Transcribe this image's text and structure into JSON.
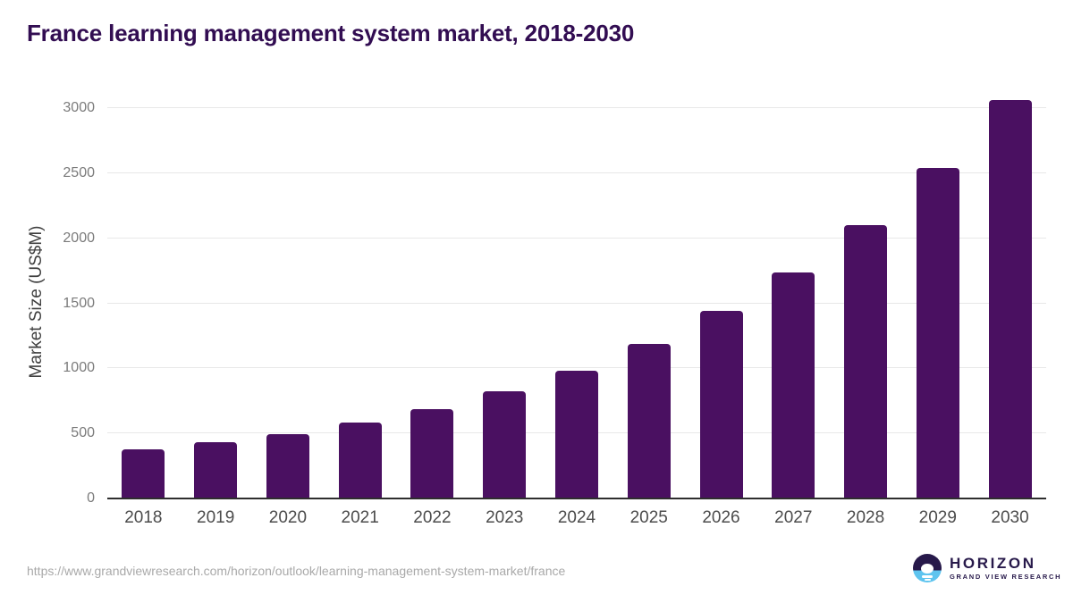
{
  "header": {
    "title": "France learning management system market, 2018-2030"
  },
  "chart_data": {
    "type": "bar",
    "title": "France learning management system market, 2018-2030",
    "categories": [
      "2018",
      "2019",
      "2020",
      "2021",
      "2022",
      "2023",
      "2024",
      "2025",
      "2026",
      "2027",
      "2028",
      "2029",
      "2030"
    ],
    "values": [
      376,
      433,
      493,
      586,
      690,
      823,
      985,
      1191,
      1440,
      1741,
      2105,
      2544,
      3065
    ],
    "xlabel": "",
    "ylabel": "Market Size (US$M)",
    "ylim": [
      0,
      3000
    ],
    "yticks": [
      0,
      500,
      1000,
      1500,
      2000,
      2500,
      3000
    ],
    "grid": true,
    "legend": "none",
    "bar_color": "#4a1061"
  },
  "footer": {
    "source_url": "https://www.grandviewresearch.com/horizon/outlook/learning-management-system-market/france",
    "logo": {
      "brand": "HORIZON",
      "subbrand": "GRAND VIEW RESEARCH"
    }
  },
  "colors": {
    "title": "#320d52",
    "bar": "#4a1061",
    "gridline": "#e8e8e8",
    "axis_line": "#2e2e2e",
    "y_tick": "#7b7b7b",
    "x_tick": "#4c4c4c",
    "url": "#a9a9a9",
    "logo_dark": "#27194a",
    "logo_blue": "#5ec4ef"
  }
}
